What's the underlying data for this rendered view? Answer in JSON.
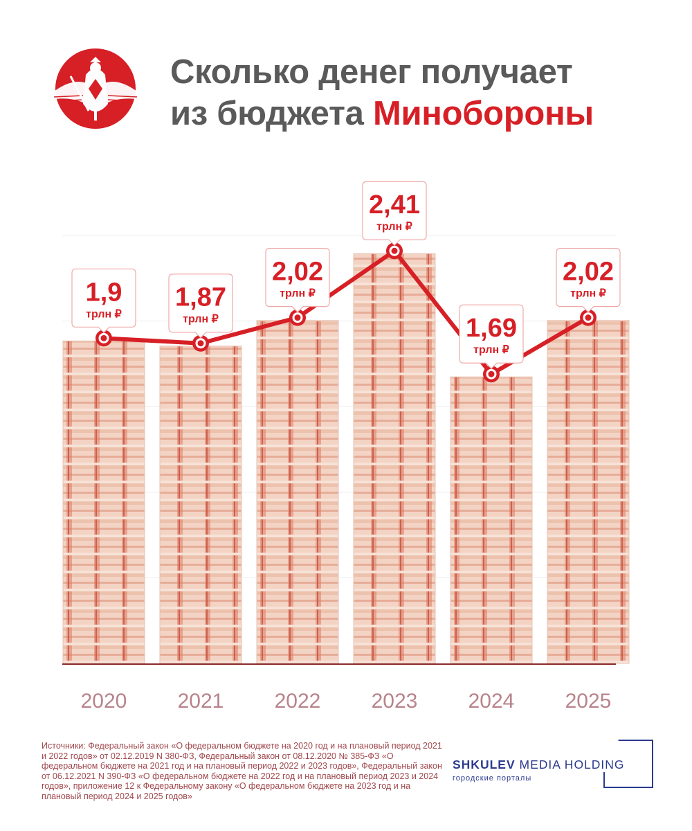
{
  "header": {
    "title_line1": "Сколько денег получает",
    "title_line2_prefix": "из бюджета ",
    "title_line2_accent": "Минобороны",
    "emblem_icon": "russian-mod-emblem-icon"
  },
  "chart_data": {
    "type": "bar",
    "overlay": "line",
    "title": "",
    "xlabel": "",
    "ylabel": "",
    "categories": [
      "2020",
      "2021",
      "2022",
      "2023",
      "2024",
      "2025"
    ],
    "values": [
      1.9,
      1.87,
      2.02,
      2.41,
      1.69,
      2.02
    ],
    "value_labels": [
      "1,9",
      "1,87",
      "2,02",
      "2,41",
      "1,69",
      "2,02"
    ],
    "unit": "трлн ₽",
    "ylim": [
      0,
      2.5
    ],
    "grid": true,
    "legend": "none",
    "colors": {
      "line": "#d71f26",
      "label": "#d71f26",
      "axis": "#8b2a2a",
      "year": "#b8838a",
      "money": "#e9b7a5"
    }
  },
  "sources": "Источники: Федеральный закон «О федеральном бюджете на 2020 год и на плановый период 2021 и 2022 годов» от 02.12.2019 N 380-ФЗ, Федеральный закон от 08.12.2020 № 385-ФЗ «О федеральном бюджете на 2021 год и на плановый период 2022 и 2023 годов», Федеральный закон от 06.12.2021 N 390-ФЗ «О федеральном бюджете на 2022 год и на плановый период 2023 и 2024 годов», приложение 12 к Федеральному закону «О федеральном бюджете на 2023 год и на плановый период 2024 и 2025 годов»",
  "brand": {
    "name_bold": "SHKULEV",
    "name_rest": " MEDIA HOLDING",
    "tagline": "городские порталы"
  }
}
